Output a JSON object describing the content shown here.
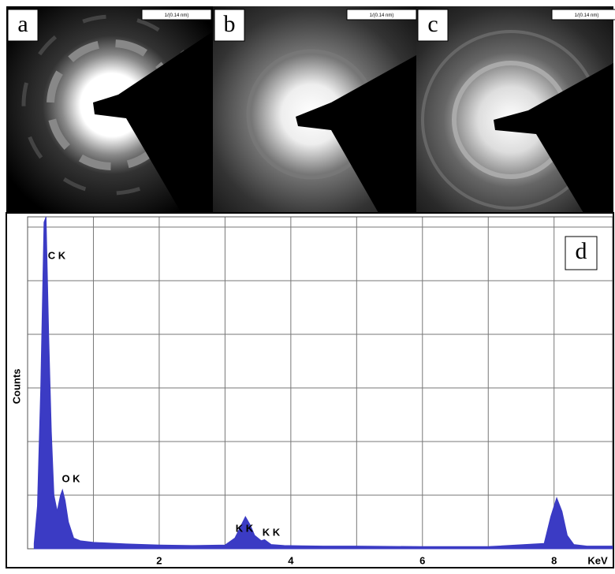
{
  "panels": [
    {
      "label": "a",
      "scale_label": "1/(0.14 nm)"
    },
    {
      "label": "b",
      "scale_label": "1/(0.14 nm)"
    },
    {
      "label": "c",
      "scale_label": "1/(0.14 nm)"
    }
  ],
  "chart_data": {
    "type": "area",
    "label": "d",
    "xlabel": "KeV",
    "ylabel": "Counts",
    "color": "#3b3bc4",
    "x": [
      0.1,
      0.15,
      0.2,
      0.25,
      0.28,
      0.32,
      0.36,
      0.4,
      0.45,
      0.5,
      0.53,
      0.57,
      0.62,
      0.7,
      0.8,
      1.0,
      1.5,
      2.0,
      2.5,
      3.0,
      3.15,
      3.25,
      3.31,
      3.38,
      3.45,
      3.55,
      3.6,
      3.7,
      3.9,
      4.5,
      5,
      6,
      7,
      7.85,
      7.95,
      8.04,
      8.12,
      8.2,
      8.3,
      8.5,
      8.89
    ],
    "values": [
      0.1,
      0.8,
      3.0,
      6.1,
      6.2,
      4.0,
      2.2,
      1.0,
      0.7,
      1.0,
      1.1,
      0.9,
      0.5,
      0.2,
      0.15,
      0.12,
      0.09,
      0.07,
      0.06,
      0.07,
      0.2,
      0.45,
      0.6,
      0.45,
      0.25,
      0.15,
      0.17,
      0.08,
      0.06,
      0.05,
      0.05,
      0.04,
      0.04,
      0.1,
      0.6,
      0.95,
      0.7,
      0.25,
      0.08,
      0.05,
      0.05
    ],
    "xlim": [
      0,
      8.89
    ],
    "xticks": [
      2,
      4,
      6,
      8
    ],
    "ylim": [
      0,
      6.2
    ],
    "grid": true,
    "annotations": [
      "C K",
      "O K",
      "K K",
      "K K"
    ]
  }
}
